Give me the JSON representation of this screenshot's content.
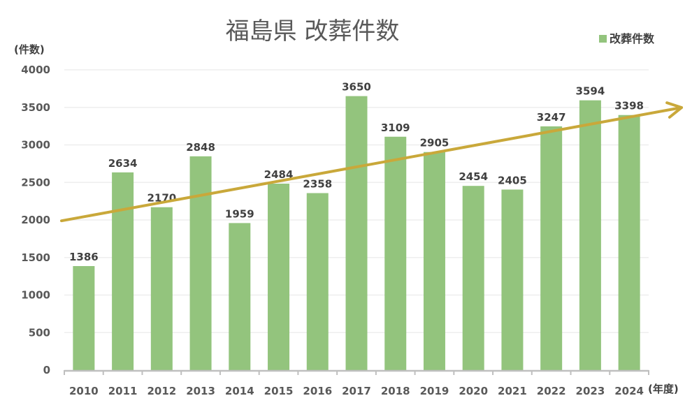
{
  "chart_data": {
    "type": "bar",
    "title": "福島県 改葬件数",
    "ylabel": "(件数)",
    "xlabel": "(年度)",
    "categories": [
      "2010",
      "2011",
      "2012",
      "2013",
      "2014",
      "2015",
      "2016",
      "2017",
      "2018",
      "2019",
      "2020",
      "2021",
      "2022",
      "2023",
      "2024"
    ],
    "series": [
      {
        "name": "改葬件数",
        "values": [
          1386,
          2634,
          2170,
          2848,
          1959,
          2484,
          2358,
          3650,
          3109,
          2905,
          2454,
          2405,
          3247,
          3594,
          3398
        ]
      }
    ],
    "ylim": [
      0,
      4000
    ],
    "yticks": [
      0,
      500,
      1000,
      1500,
      2000,
      2500,
      3000,
      3500,
      4000
    ],
    "grid": true,
    "legend_position": "top-right",
    "data_labels": true,
    "trend_arrow": {
      "description_hidden": true,
      "color": "#c9a83a"
    },
    "colors": {
      "bar": "#93c47d",
      "arrow": "#c9a83a",
      "grid": "#eeeeee",
      "axis": "#bfbfbf"
    }
  }
}
